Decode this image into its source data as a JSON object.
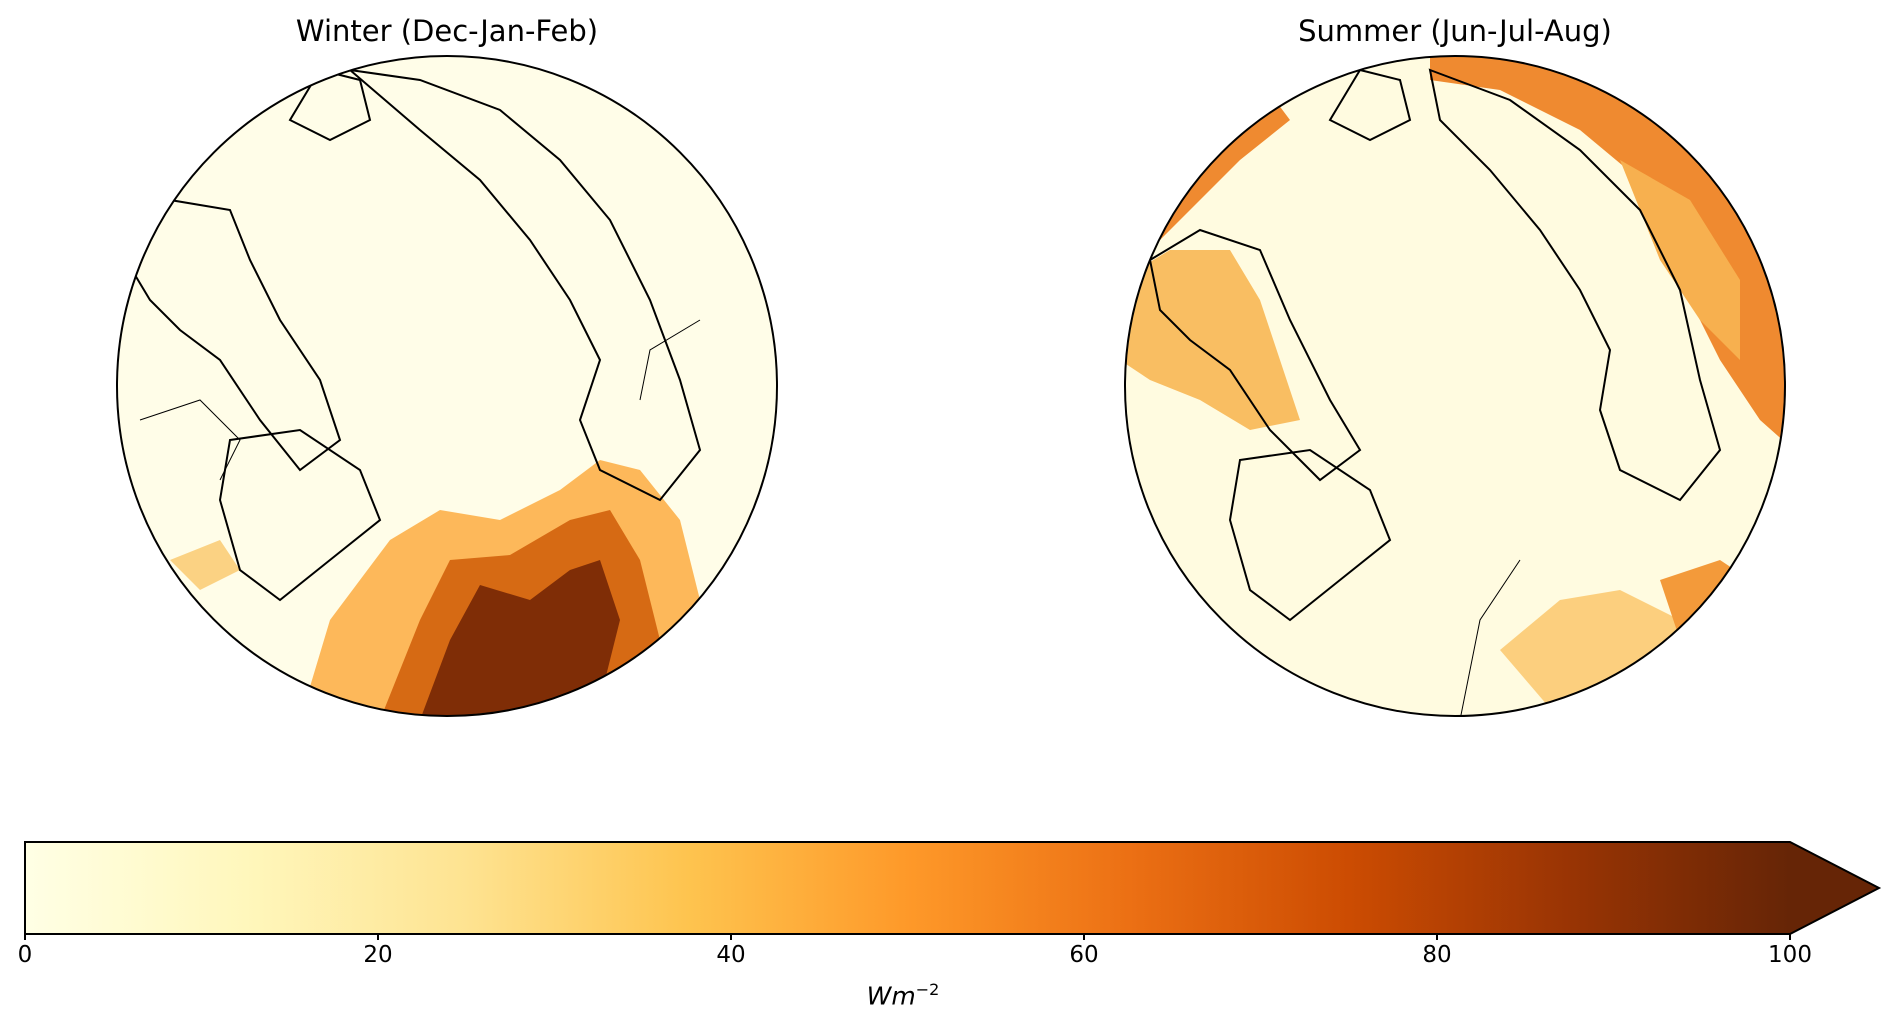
{
  "panels": [
    {
      "title": "Winter (Dec-Jan-Feb)"
    },
    {
      "title": "Summer (Jun-Jul-Aug)"
    }
  ],
  "colorbar": {
    "colormap": "YlOrBr",
    "stops": [
      "#ffffe5",
      "#fff7bc",
      "#fee391",
      "#fec44f",
      "#fe9929",
      "#ec7014",
      "#cc4c02",
      "#993404",
      "#662506"
    ],
    "ticks": [
      "0",
      "20",
      "40",
      "60",
      "80",
      "100"
    ],
    "range": [
      0,
      100
    ],
    "extend": "max",
    "unit_base": "Wm",
    "unit_exp": "−2"
  }
}
